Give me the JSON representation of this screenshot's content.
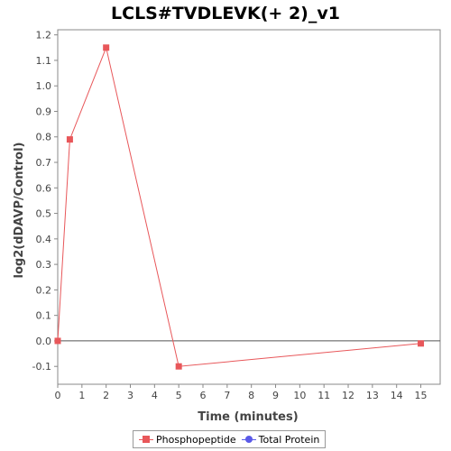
{
  "chart_data": {
    "type": "line",
    "title": "LCLS#TVDLEVK(+ 2)_v1",
    "xlabel": "Time (minutes)",
    "ylabel": "log2(dDAVP/Control)",
    "xlim": [
      0,
      15.8
    ],
    "ylim": [
      -0.17,
      1.22
    ],
    "xticks": [
      0,
      1,
      2,
      3,
      4,
      5,
      6,
      7,
      8,
      9,
      10,
      11,
      12,
      13,
      14,
      15
    ],
    "yticks": [
      -0.1,
      0.0,
      0.1,
      0.2,
      0.3,
      0.4,
      0.5,
      0.6,
      0.7,
      0.8,
      0.9,
      1.0,
      1.1,
      1.2
    ],
    "grid": false,
    "legend_position": "bottom",
    "series": [
      {
        "name": "Phosphopeptide",
        "color": "#e8575a",
        "marker": "square",
        "x": [
          0,
          0.5,
          2,
          5,
          15
        ],
        "y": [
          0.0,
          0.79,
          1.15,
          -0.1,
          -0.01
        ]
      },
      {
        "name": "Total Protein",
        "color": "#5a5ae8",
        "marker": "circle",
        "x": [],
        "y": []
      }
    ]
  }
}
